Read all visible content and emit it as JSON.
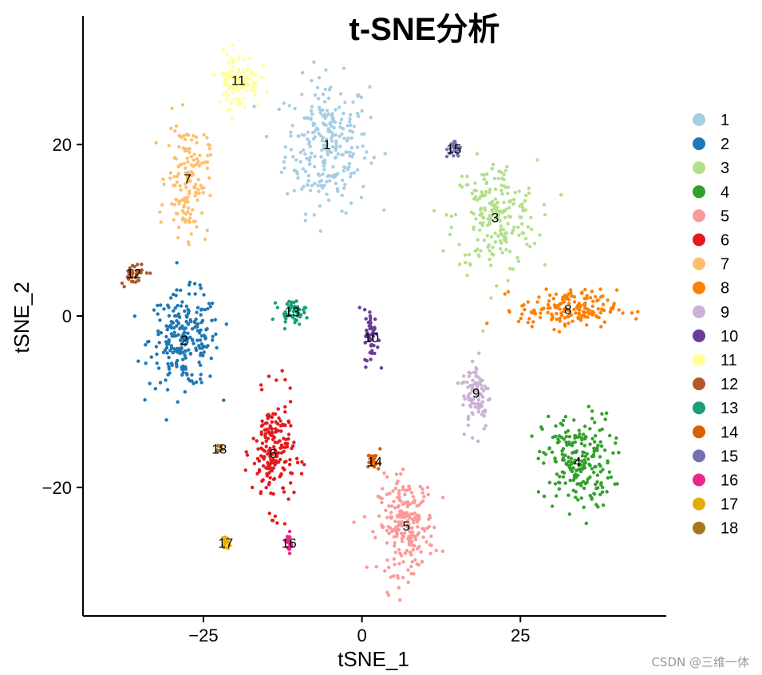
{
  "chart_data": {
    "type": "scatter",
    "title": "t-SNE分析",
    "xlabel": "tSNE_1",
    "ylabel": "tSNE_2",
    "xlim": [
      -44,
      48
    ],
    "ylim": [
      -35,
      35
    ],
    "xticks": [
      -25,
      0,
      25
    ],
    "xtick_labels": [
      "−25",
      "0",
      "25"
    ],
    "yticks": [
      -20,
      0,
      20
    ],
    "ytick_labels": [
      "−20",
      "0",
      "20"
    ],
    "grid": false,
    "legend_placement": "right",
    "clusters": [
      {
        "name": "1",
        "color": "#a6cee3",
        "center": [
          -5.5,
          20.0
        ]
      },
      {
        "name": "2",
        "color": "#1f78b4",
        "center": [
          -28.0,
          -2.8
        ]
      },
      {
        "name": "3",
        "color": "#b2df8a",
        "center": [
          21.0,
          11.5
        ]
      },
      {
        "name": "4",
        "color": "#33a02c",
        "center": [
          34.0,
          -17.0
        ]
      },
      {
        "name": "5",
        "color": "#fb9a99",
        "center": [
          7.0,
          -24.5
        ]
      },
      {
        "name": "6",
        "color": "#e31a1c",
        "center": [
          -14.0,
          -16.0
        ]
      },
      {
        "name": "7",
        "color": "#fdbf6f",
        "center": [
          -27.5,
          16.0
        ]
      },
      {
        "name": "8",
        "color": "#ff7f00",
        "center": [
          32.5,
          0.8
        ]
      },
      {
        "name": "9",
        "color": "#cab2d6",
        "center": [
          18.0,
          -9.0
        ]
      },
      {
        "name": "10",
        "color": "#6a3d9a",
        "center": [
          1.5,
          -2.5
        ]
      },
      {
        "name": "11",
        "color": "#ffff99",
        "center": [
          -19.5,
          27.5
        ]
      },
      {
        "name": "12",
        "color": "#b15928",
        "center": [
          -36.0,
          5.0
        ]
      },
      {
        "name": "13",
        "color": "#1b9e77",
        "center": [
          -11.0,
          0.5
        ]
      },
      {
        "name": "14",
        "color": "#d95f02",
        "center": [
          2.0,
          -17.0
        ]
      },
      {
        "name": "15",
        "color": "#7570b3",
        "center": [
          14.5,
          19.5
        ]
      },
      {
        "name": "16",
        "color": "#e7298a",
        "center": [
          -11.5,
          -26.5
        ]
      },
      {
        "name": "17",
        "color": "#e6ab02",
        "center": [
          -21.5,
          -26.5
        ]
      },
      {
        "name": "18",
        "color": "#a6761d",
        "center": [
          -22.5,
          -15.5
        ]
      }
    ]
  },
  "watermark": "CSDN @三维一体"
}
